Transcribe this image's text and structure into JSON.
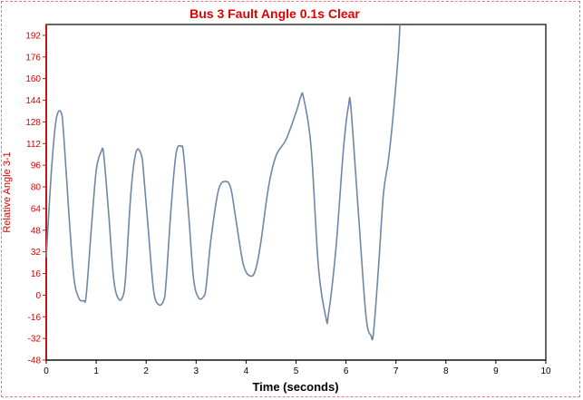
{
  "chart_data": {
    "type": "line",
    "title": "Bus 3 Fault Angle 0.1s Clear",
    "xlabel": "Time (seconds)",
    "ylabel": "Relative Angle 3-1",
    "xlim": [
      0,
      10
    ],
    "ylim": [
      -48,
      200
    ],
    "xticks": [
      "0",
      "1",
      "2",
      "3",
      "4",
      "5",
      "6",
      "7",
      "8",
      "9",
      "10"
    ],
    "yticks": [
      "192",
      "176",
      "160",
      "144",
      "128",
      "112",
      "96",
      "80",
      "64",
      "48",
      "32",
      "16",
      "0",
      "-16",
      "-32",
      "-48"
    ],
    "grid": false,
    "series": [
      {
        "color": "#6f87a6",
        "x": [
          0.0,
          0.1,
          0.2,
          0.3,
          0.35,
          0.45,
          0.55,
          0.65,
          0.75,
          0.8,
          0.9,
          1.0,
          1.1,
          1.15,
          1.25,
          1.35,
          1.45,
          1.55,
          1.6,
          1.7,
          1.8,
          1.9,
          1.95,
          2.05,
          2.15,
          2.25,
          2.35,
          2.4,
          2.5,
          2.6,
          2.7,
          2.75,
          2.85,
          2.95,
          3.05,
          3.15,
          3.2,
          3.3,
          3.45,
          3.6,
          3.7,
          3.8,
          3.95,
          4.1,
          4.2,
          4.3,
          4.45,
          4.6,
          4.8,
          5.0,
          5.1,
          5.15,
          5.3,
          5.45,
          5.6,
          5.65,
          5.8,
          5.95,
          6.05,
          6.1,
          6.25,
          6.4,
          6.5,
          6.55,
          6.65,
          6.75,
          6.85,
          6.95,
          7.05,
          7.08
        ],
        "y": [
          28,
          90,
          130,
          135,
          118,
          62,
          14,
          -2,
          -4,
          0,
          48,
          92,
          106,
          104,
          60,
          12,
          -3,
          1,
          20,
          78,
          106,
          104,
          90,
          45,
          3,
          -7,
          -4,
          10,
          65,
          105,
          110,
          104,
          60,
          12,
          -2,
          -1,
          6,
          42,
          78,
          84,
          78,
          55,
          22,
          14,
          20,
          40,
          80,
          103,
          115,
          135,
          147,
          146,
          110,
          20,
          -17,
          -14,
          35,
          108,
          140,
          138,
          60,
          -15,
          -30,
          -28,
          20,
          75,
          100,
          135,
          180,
          200
        ]
      }
    ]
  }
}
